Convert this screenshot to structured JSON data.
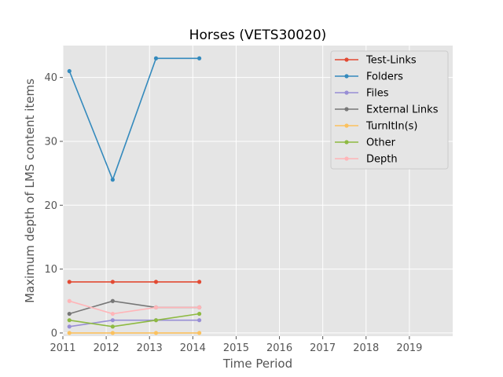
{
  "chart_data": {
    "type": "line",
    "title": "Horses (VETS30020)",
    "xlabel": "Time Period",
    "ylabel": "Maximum depth of LMS content items",
    "xlim": [
      2011,
      2020
    ],
    "ylim": [
      -0.5,
      45
    ],
    "x_ticks": [
      "2011",
      "2012",
      "2013",
      "2014",
      "2015",
      "2016",
      "2017",
      "2018",
      "2019"
    ],
    "y_ticks": [
      "0",
      "10",
      "20",
      "30",
      "40"
    ],
    "grid": true,
    "legend_position": "top-right",
    "x": [
      2011.15,
      2012.15,
      2013.15,
      2014.15
    ],
    "series": [
      {
        "name": "Test-Links",
        "color": "#E24A33",
        "values": [
          8,
          8,
          8,
          8
        ]
      },
      {
        "name": "Folders",
        "color": "#348ABD",
        "values": [
          41,
          24,
          43,
          43
        ]
      },
      {
        "name": "Files",
        "color": "#988ED5",
        "values": [
          1,
          2,
          2,
          2
        ]
      },
      {
        "name": "External Links",
        "color": "#777777",
        "values": [
          3,
          5,
          4,
          4
        ]
      },
      {
        "name": "TurnItIn(s)",
        "color": "#FBC15E",
        "values": [
          0,
          0,
          0,
          0
        ]
      },
      {
        "name": "Other",
        "color": "#8EBA42",
        "values": [
          2,
          1,
          2,
          3
        ]
      },
      {
        "name": "Depth",
        "color": "#FFB5B8",
        "values": [
          5,
          3,
          4,
          4
        ]
      }
    ]
  }
}
